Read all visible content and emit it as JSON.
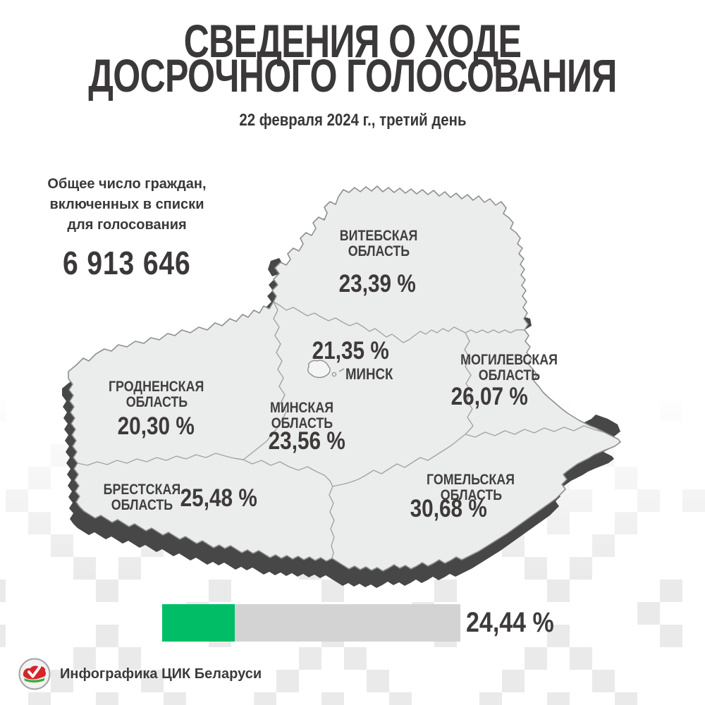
{
  "header": {
    "title_line1": "СВЕДЕНИЯ О ХОДЕ",
    "title_line2": "ДОСРОЧНОГО ГОЛОСОВАНИЯ",
    "subtitle": "22 февраля 2024 г., третий день"
  },
  "totals": {
    "caption_line1": "Общее число граждан,",
    "caption_line2": "включенных в списки",
    "caption_line3": "для голосования",
    "value": "6 913 646"
  },
  "regions": {
    "vitebsk": {
      "name_line1": "ВИТЕБСКАЯ",
      "name_line2": "ОБЛАСТЬ",
      "value": "23,39 %"
    },
    "minsk_city": {
      "name": "МИНСК",
      "value": "21,35 %"
    },
    "mogilev": {
      "name_line1": "МОГИЛЕВСКАЯ",
      "name_line2": "ОБЛАСТЬ",
      "value": "26,07 %"
    },
    "grodno": {
      "name_line1": "ГРОДНЕНСКАЯ",
      "name_line2": "ОБЛАСТЬ",
      "value": "20,30 %"
    },
    "minsk_region": {
      "name_line1": "МИНСКАЯ",
      "name_line2": "ОБЛАСТЬ",
      "value": "23,56 %"
    },
    "brest": {
      "name_line1": "БРЕСТСКАЯ",
      "name_line2": "ОБЛАСТЬ",
      "value": "25,48 %"
    },
    "gomel": {
      "name_line1": "ГОМЕЛЬСКАЯ",
      "name_line2": "ОБЛАСТЬ",
      "value": "30,68 %"
    }
  },
  "progress": {
    "value_label": "24,44 %",
    "percent": 24.44,
    "bar_color": "#00bd66",
    "track_color": "#d3d3d3"
  },
  "footer": {
    "credit": "Инфографика ЦИК Беларуси"
  },
  "icons": {
    "logo": "cec-belarus-emblem"
  },
  "colors": {
    "map_fill": "#ebedec",
    "map_border": "#8f8f8f",
    "map_shadow": "#474747",
    "ornament": "#eaeaea",
    "accent_green": "#00bd66",
    "logo_red": "#d8232a",
    "logo_green": "#3fae3a",
    "text_dark": "#3b3839"
  },
  "chart_data": {
    "type": "map",
    "title": "СВЕДЕНИЯ О ХОДЕ ДОСРОЧНОГО ГОЛОСОВАНИЯ",
    "subtitle": "22 февраля 2024 г., третий день",
    "total_voters_listed": 6913646,
    "overall_turnout_percent": 24.44,
    "categories": [
      "Витебская область",
      "Минск",
      "Могилевская область",
      "Гродненская область",
      "Минская область",
      "Брестская область",
      "Гомельская область"
    ],
    "values": [
      23.39,
      21.35,
      26.07,
      20.3,
      23.56,
      25.48,
      30.68
    ],
    "legend_position": "none",
    "grid": false
  }
}
